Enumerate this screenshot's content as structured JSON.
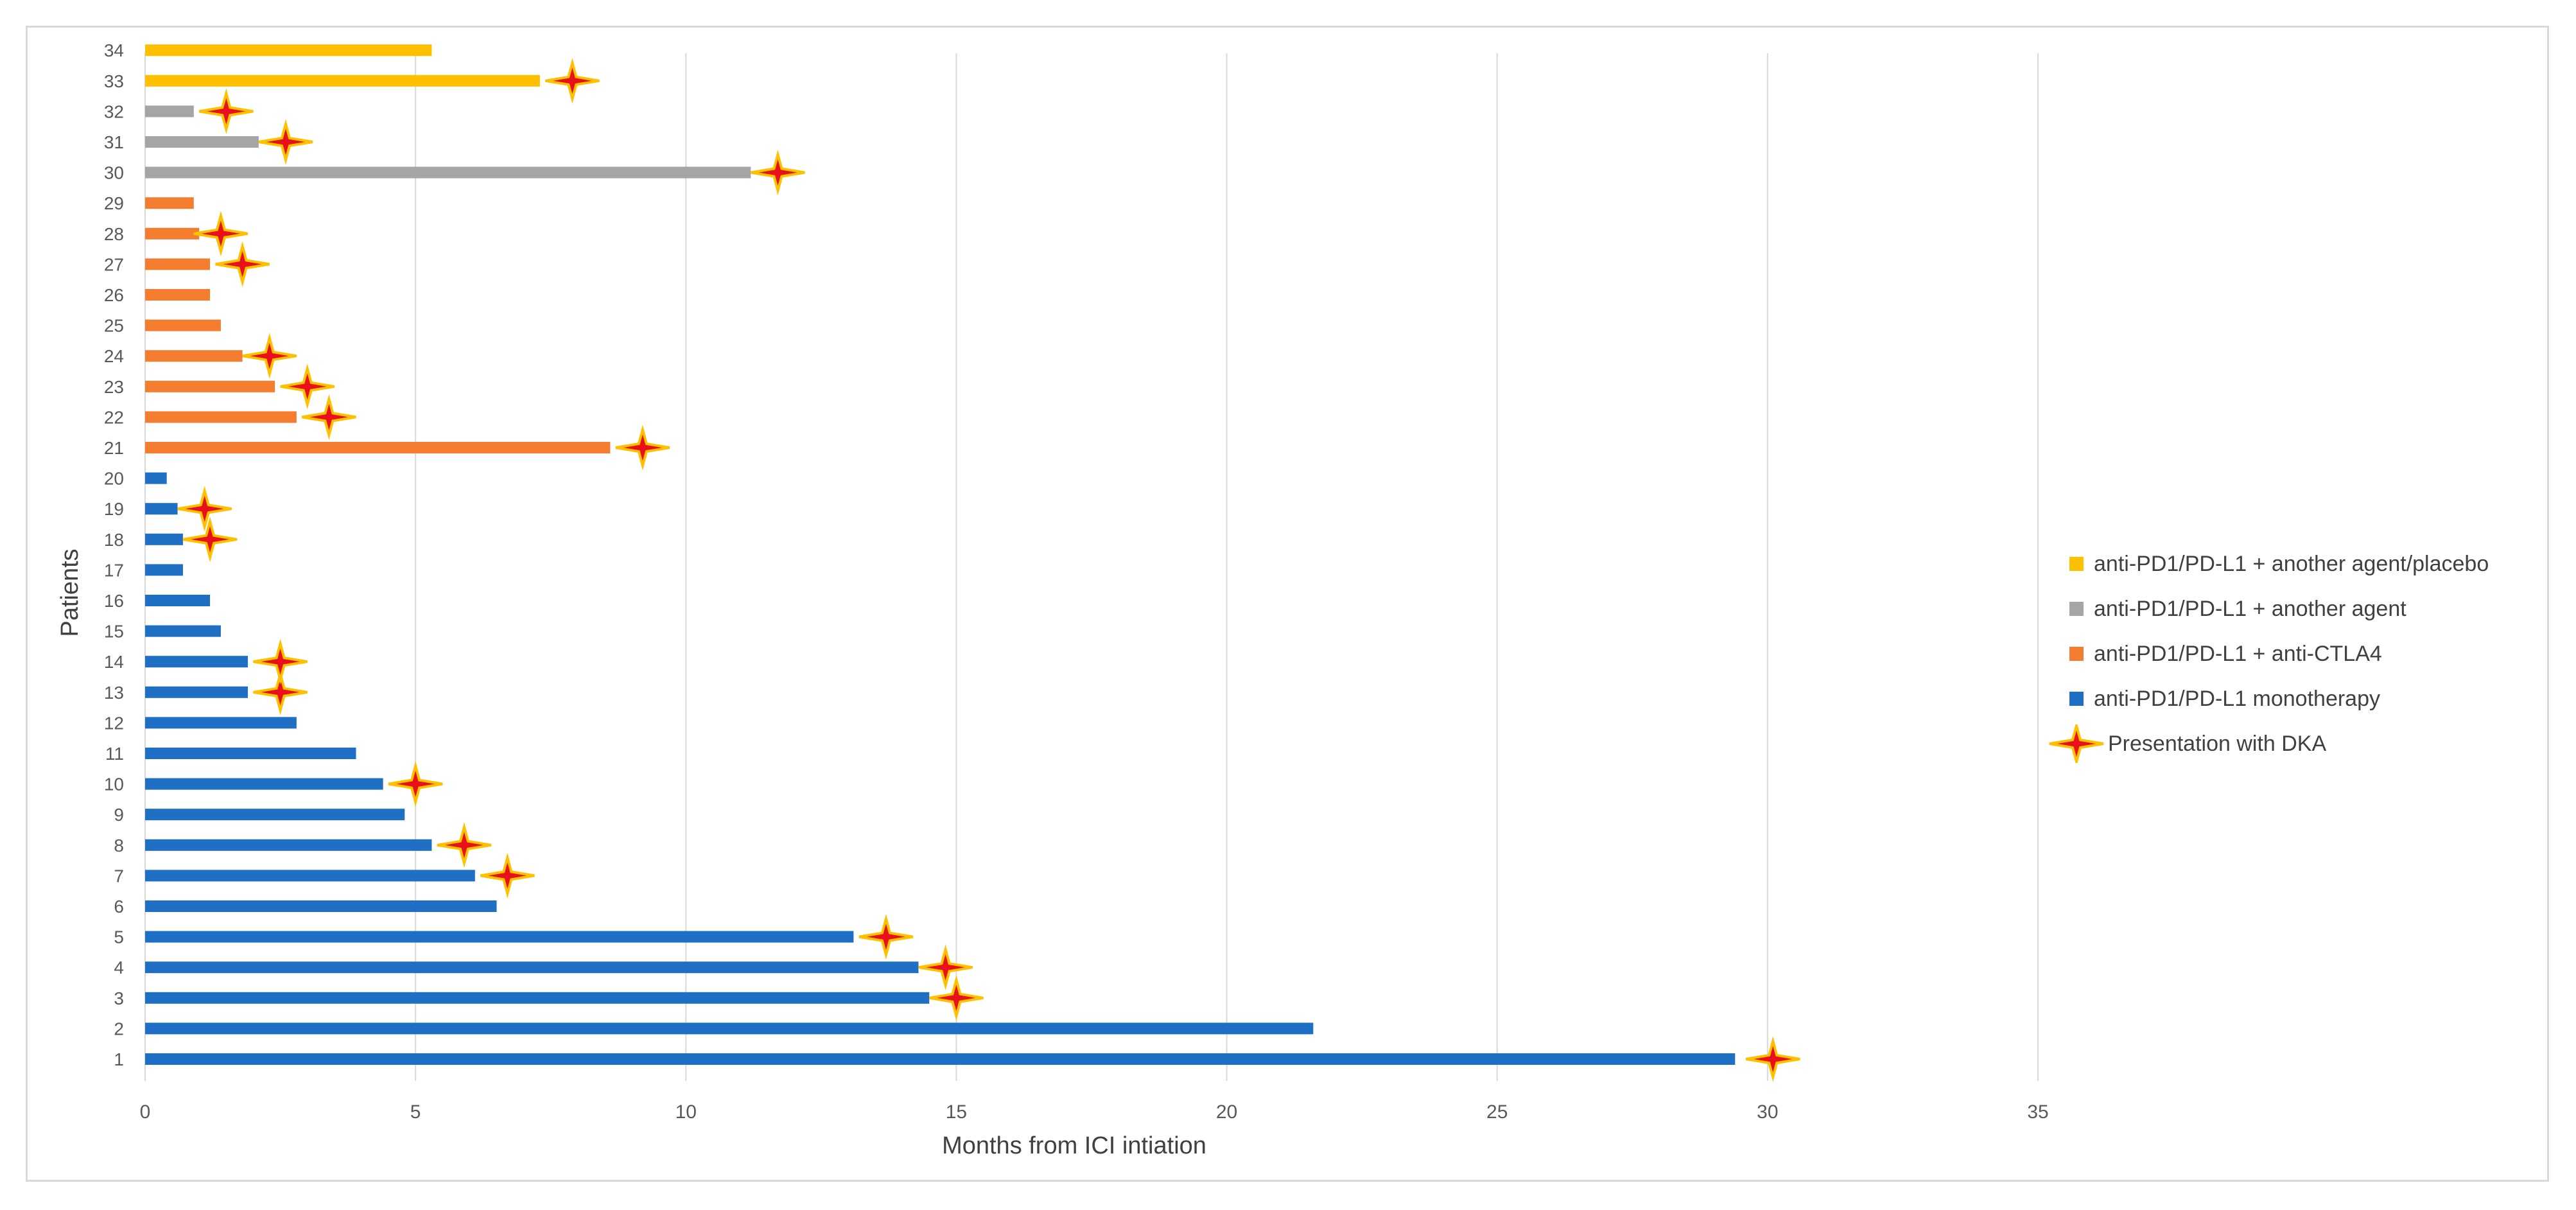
{
  "chart_data": {
    "type": "bar",
    "orientation": "horizontal",
    "title": "",
    "xlabel": "Months from ICI intiation",
    "ylabel": "Patients",
    "xlim": [
      0,
      35
    ],
    "xticks": [
      "0",
      "5",
      "10",
      "15",
      "20",
      "25",
      "30",
      "35"
    ],
    "grid": "vertical",
    "legend_placement": "right",
    "categories": [
      "1",
      "2",
      "3",
      "4",
      "5",
      "6",
      "7",
      "8",
      "9",
      "10",
      "11",
      "12",
      "13",
      "14",
      "15",
      "16",
      "17",
      "18",
      "19",
      "20",
      "21",
      "22",
      "23",
      "24",
      "25",
      "26",
      "27",
      "28",
      "29",
      "30",
      "31",
      "32",
      "33",
      "34"
    ],
    "values": [
      29.4,
      21.6,
      14.5,
      14.3,
      13.1,
      6.5,
      6.1,
      5.3,
      4.8,
      4.4,
      3.9,
      2.8,
      1.9,
      1.9,
      1.4,
      1.2,
      0.7,
      0.7,
      0.6,
      0.4,
      8.6,
      2.8,
      2.4,
      1.8,
      1.4,
      1.2,
      1.2,
      1.0,
      0.9,
      11.2,
      2.1,
      0.9,
      7.3,
      5.3
    ],
    "groups": [
      1,
      1,
      1,
      1,
      1,
      1,
      1,
      1,
      1,
      1,
      1,
      1,
      1,
      1,
      1,
      1,
      1,
      1,
      1,
      1,
      2,
      2,
      2,
      2,
      2,
      2,
      2,
      2,
      2,
      3,
      3,
      3,
      4,
      4
    ],
    "dka_markers": [
      {
        "patient": "1",
        "x": 30.1
      },
      {
        "patient": "3",
        "x": 15.0
      },
      {
        "patient": "4",
        "x": 14.8
      },
      {
        "patient": "5",
        "x": 13.7
      },
      {
        "patient": "7",
        "x": 6.7
      },
      {
        "patient": "8",
        "x": 5.9
      },
      {
        "patient": "10",
        "x": 5.0
      },
      {
        "patient": "13",
        "x": 2.5
      },
      {
        "patient": "14",
        "x": 2.5
      },
      {
        "patient": "18",
        "x": 1.2
      },
      {
        "patient": "19",
        "x": 1.1
      },
      {
        "patient": "21",
        "x": 9.2
      },
      {
        "patient": "22",
        "x": 3.4
      },
      {
        "patient": "23",
        "x": 3.0
      },
      {
        "patient": "24",
        "x": 2.3
      },
      {
        "patient": "27",
        "x": 1.8
      },
      {
        "patient": "28",
        "x": 1.4
      },
      {
        "patient": "30",
        "x": 11.7
      },
      {
        "patient": "31",
        "x": 2.6
      },
      {
        "patient": "32",
        "x": 1.5
      },
      {
        "patient": "33",
        "x": 7.9
      }
    ],
    "series": [
      {
        "name": "anti-PD1/PD-L1 monotherapy",
        "color": "#1f6fc5"
      },
      {
        "name": "anti-PD1/PD-L1 + anti-CTLA4",
        "color": "#f47d30"
      },
      {
        "name": "anti-PD1/PD-L1 + another agent",
        "color": "#a5a5a5"
      },
      {
        "name": "anti-PD1/PD-L1 + another agent/placebo",
        "color": "#ffc000"
      }
    ],
    "marker_legend": "Presentation with DKA"
  }
}
